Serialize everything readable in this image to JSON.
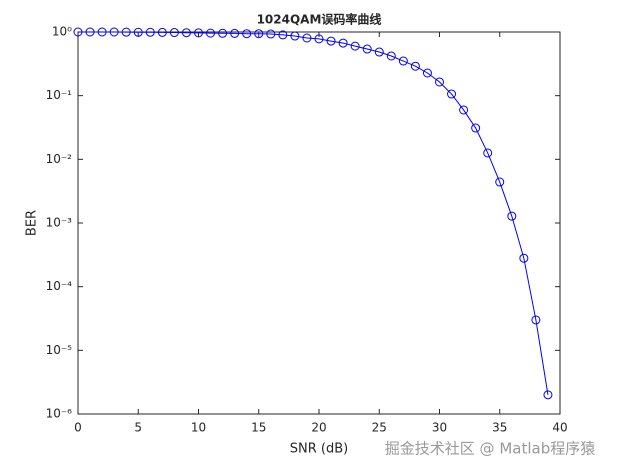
{
  "chart_data": {
    "type": "line",
    "title": "1024QAM误码率曲线",
    "x_label": "SNR (dB)",
    "y_label": "BER",
    "log_y": true,
    "x": [
      0,
      1,
      2,
      3,
      4,
      5,
      6,
      7,
      8,
      9,
      10,
      11,
      12,
      13,
      14,
      15,
      16,
      17,
      18,
      19,
      20,
      21,
      22,
      23,
      24,
      25,
      26,
      27,
      28,
      29,
      30,
      31,
      32,
      33,
      34,
      35,
      36,
      37,
      38,
      39
    ],
    "series": [
      {
        "name": "BER",
        "color": "#0000ff",
        "marker": "circle",
        "values": [
          1,
          1,
          1,
          1,
          0.995,
          0.99,
          0.99,
          0.985,
          0.98,
          0.975,
          0.97,
          0.96,
          0.955,
          0.95,
          0.94,
          0.94,
          0.93,
          0.9,
          0.865,
          0.805,
          0.78,
          0.72,
          0.67,
          0.6,
          0.54,
          0.485,
          0.42,
          0.35,
          0.29,
          0.227,
          0.164,
          0.106,
          0.0596,
          0.031,
          0.0126,
          0.0044,
          0.00128,
          0.00028,
          3e-05,
          2e-06
        ]
      }
    ],
    "xlim": [
      0,
      40
    ],
    "xticks": [
      0,
      5,
      10,
      15,
      20,
      25,
      30,
      35,
      40
    ],
    "ylim": [
      1e-06,
      1
    ],
    "yticks": [
      {
        "value": 1e-06,
        "label": "10⁻⁶"
      },
      {
        "value": 1e-05,
        "label": "10⁻⁵"
      },
      {
        "value": 0.0001,
        "label": "10⁻⁴"
      },
      {
        "value": 0.001,
        "label": "10⁻³"
      },
      {
        "value": 0.01,
        "label": "10⁻²"
      },
      {
        "value": 0.1,
        "label": "10⁻¹"
      },
      {
        "value": 1,
        "label": "10⁰"
      }
    ],
    "watermark": "掘金技术社区 @ Matlab程序猿"
  }
}
